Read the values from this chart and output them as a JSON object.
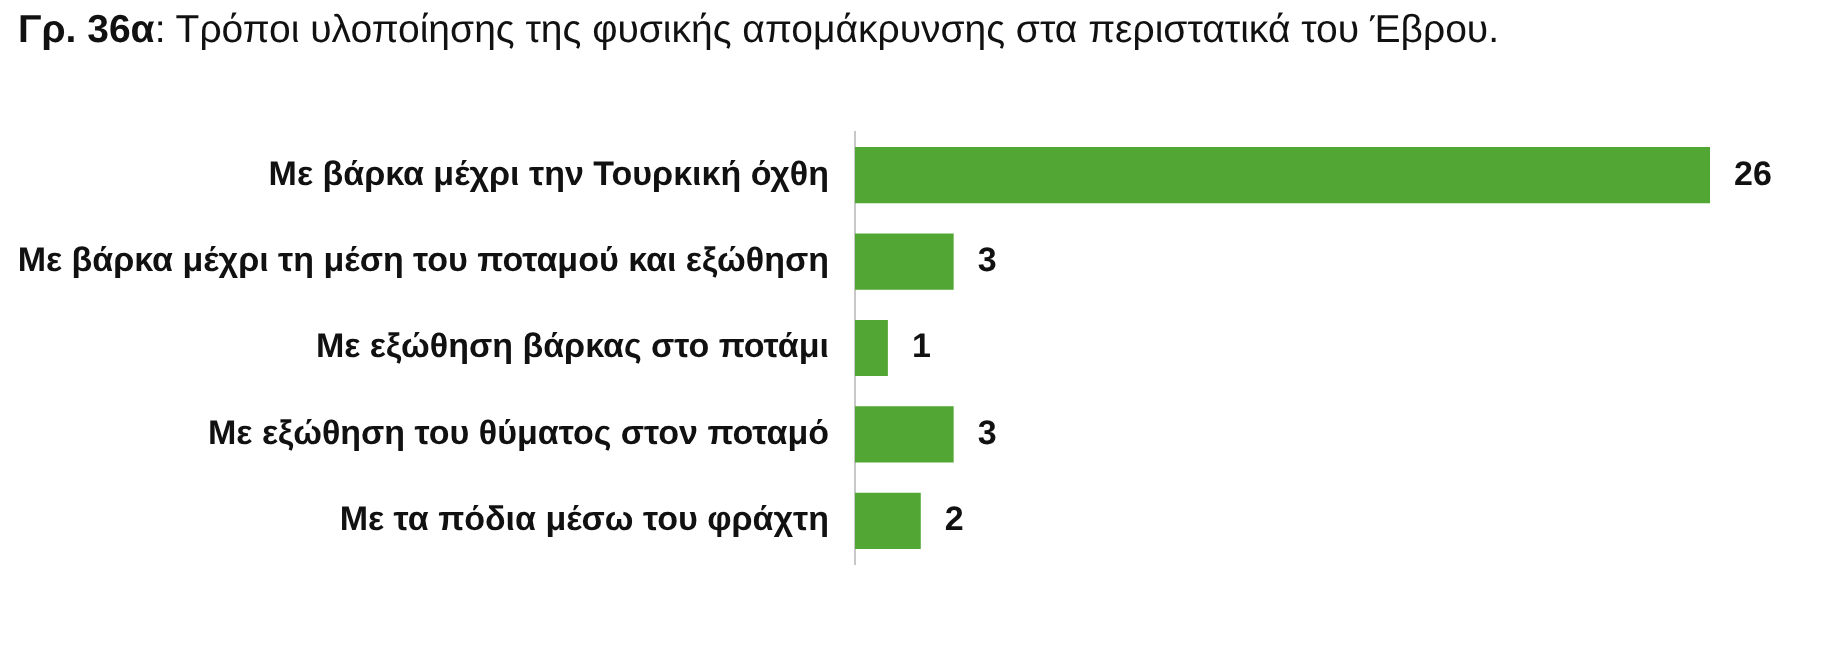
{
  "chart_data": {
    "type": "bar",
    "orientation": "horizontal",
    "title": "Γρ. 36α: Τρόποι υλοποίησης της φυσικής απομάκρυνσης στα περιστατικά του Έβρου.",
    "categories": [
      "Με βάρκα μέχρι την Τουρκική όχθη",
      "Με βάρκα μέχρι τη μέση του ποταμού και εξώθηση",
      "Με εξώθηση βάρκας στο ποτάμι",
      "Με εξώθηση του θύματος στον ποταμό",
      "Με τα πόδια μέσω του φράχτη"
    ],
    "values": [
      26,
      3,
      1,
      3,
      2
    ],
    "color": "#52a633",
    "data_labels": true
  }
}
